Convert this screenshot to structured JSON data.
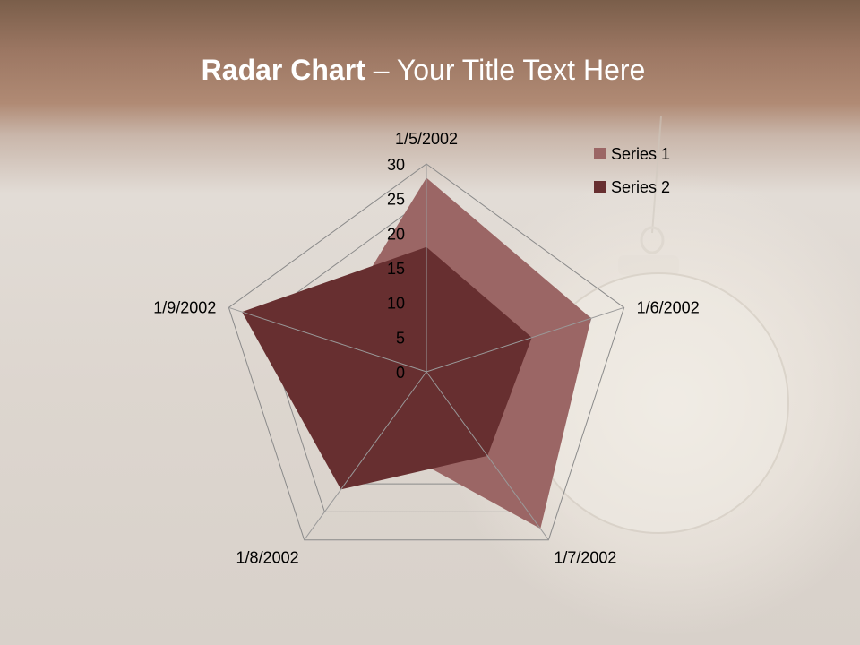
{
  "slide": {
    "title_bold": "Radar Chart",
    "title_rest": " – Your Title Text Here"
  },
  "chart_data": {
    "type": "radar",
    "title": "",
    "categories": [
      "1/5/2002",
      "1/6/2002",
      "1/7/2002",
      "1/8/2002",
      "1/9/2002"
    ],
    "series": [
      {
        "name": "Series 1",
        "values": [
          28,
          25,
          28,
          12,
          15
        ],
        "color": "#9b6665"
      },
      {
        "name": "Series 2",
        "values": [
          18,
          16,
          15,
          21,
          28
        ],
        "color": "#672f30"
      }
    ],
    "rlim": [
      0,
      30
    ],
    "ticks": [
      "0",
      "5",
      "10",
      "15",
      "20",
      "25",
      "30"
    ],
    "grid": true,
    "legend": "top-right"
  }
}
